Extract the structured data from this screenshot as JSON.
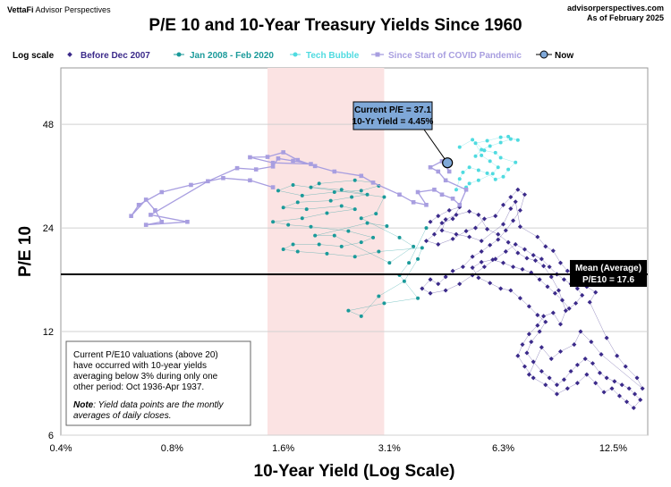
{
  "header": {
    "brand_bold": "VettaFi",
    "brand_rest": "Advisor Perspectives",
    "site": "advisorperspectives.com",
    "as_of": "As of February 2025",
    "title": "P/E 10 and 10-Year Treasury Yields Since 1960"
  },
  "colors": {
    "before": "#3b2a8a",
    "gfc": "#1a9a9a",
    "tech": "#4fdbe0",
    "covid": "#a89ee0",
    "now": "#7fa8d8",
    "band": "#fbe3e3"
  },
  "chart_data": {
    "type": "scatter",
    "title": "P/E 10 and 10-Year Treasury Yields Since 1960",
    "xlabel": "10-Year Yield (Log Scale)",
    "ylabel": "P/E 10",
    "x_scale": "log",
    "y_scale": "log",
    "xlim": [
      0.4,
      15.5
    ],
    "ylim": [
      6,
      70
    ],
    "x_ticks": [
      0.4,
      0.8,
      1.6,
      3.1,
      6.3,
      12.5
    ],
    "x_tick_labels": [
      "0.4%",
      "0.8%",
      "1.6%",
      "3.1%",
      "6.3%",
      "12.5%"
    ],
    "y_ticks": [
      6,
      12,
      24,
      48
    ],
    "y_tick_labels": [
      "6",
      "12",
      "24",
      "48"
    ],
    "log_scale_note": "Log scale",
    "grid": "horizontal",
    "legend_position": "top",
    "legend": [
      {
        "key": "before",
        "label": "Before Dec 2007"
      },
      {
        "key": "gfc",
        "label": "Jan 2008 - Feb 2020"
      },
      {
        "key": "tech",
        "label": "Tech Bubble"
      },
      {
        "key": "covid",
        "label": "Since Start of COVID Pandemic"
      },
      {
        "key": "now",
        "label": "Now"
      }
    ],
    "shaded_band": {
      "x_from": 1.45,
      "x_to": 3.0
    },
    "mean_line": {
      "y": 17.6,
      "label_line1": "Mean (Average)",
      "label_line2": "P/E10 = 17.6"
    },
    "now_point": {
      "x": 4.45,
      "y": 37.1,
      "label_line1": "Current P/E = 37.1",
      "label_line2": "10-Yr Yield = 4.45%"
    },
    "note": {
      "text": "Current P/E10 valuations (above 20) have occurred with 10-year yields averaging below 3% during only one other period: Oct 1936-Apr 1937.",
      "note_label": "Note",
      "note_text": ": Yield data points are the montly averages of daily closes."
    },
    "series": [
      {
        "key": "covid",
        "name": "Since Start of COVID Pandemic",
        "points": [
          [
            1.5,
            31.5
          ],
          [
            1.3,
            33
          ],
          [
            1.1,
            33.5
          ],
          [
            0.9,
            32
          ],
          [
            0.75,
            30.5
          ],
          [
            0.65,
            28
          ],
          [
            0.62,
            26
          ],
          [
            0.68,
            29
          ],
          [
            0.72,
            27
          ],
          [
            0.75,
            25
          ],
          [
            0.68,
            24.5
          ],
          [
            0.88,
            25
          ],
          [
            0.7,
            26.2
          ],
          [
            1.0,
            32.8
          ],
          [
            1.2,
            35.8
          ],
          [
            1.35,
            35.5
          ],
          [
            1.5,
            36.2
          ],
          [
            1.55,
            38.2
          ],
          [
            1.7,
            37.6
          ],
          [
            1.9,
            36.8
          ],
          [
            1.5,
            37.1
          ],
          [
            1.3,
            38.5
          ],
          [
            1.45,
            38.6
          ],
          [
            1.6,
            39.8
          ],
          [
            1.75,
            37.8
          ],
          [
            1.95,
            36.3
          ],
          [
            2.2,
            35
          ],
          [
            2.6,
            34
          ],
          [
            2.8,
            32.5
          ],
          [
            3.3,
            30
          ],
          [
            3.6,
            28.5
          ],
          [
            3.9,
            28
          ],
          [
            3.7,
            30.5
          ],
          [
            4.1,
            31
          ],
          [
            4.3,
            30
          ],
          [
            4.6,
            29.2
          ],
          [
            4.8,
            28
          ],
          [
            5.0,
            31
          ],
          [
            4.4,
            33
          ],
          [
            4.2,
            35
          ],
          [
            4.0,
            36
          ],
          [
            4.3,
            37.5
          ],
          [
            4.5,
            35
          ],
          [
            4.4,
            37
          ]
        ]
      },
      {
        "key": "gfc",
        "name": "Jan 2008 - Feb 2020",
        "points": [
          [
            3.9,
            24
          ],
          [
            3.5,
            19
          ],
          [
            3.3,
            17.5
          ],
          [
            3.7,
            15
          ],
          [
            3.0,
            14.5
          ],
          [
            2.4,
            13.8
          ],
          [
            2.6,
            13.3
          ],
          [
            2.9,
            15.2
          ],
          [
            3.4,
            16.8
          ],
          [
            3.7,
            19.5
          ],
          [
            3.8,
            21
          ],
          [
            2.9,
            20.5
          ],
          [
            2.5,
            19.8
          ],
          [
            2.1,
            20.2
          ],
          [
            1.75,
            20.5
          ],
          [
            1.6,
            20.8
          ],
          [
            1.7,
            21.5
          ],
          [
            2.0,
            21.5
          ],
          [
            2.3,
            21.2
          ],
          [
            2.6,
            21.8
          ],
          [
            2.8,
            22.5
          ],
          [
            2.4,
            23.5
          ],
          [
            1.9,
            24.2
          ],
          [
            1.65,
            24.5
          ],
          [
            1.5,
            25
          ],
          [
            1.8,
            25.6
          ],
          [
            2.1,
            26.5
          ],
          [
            2.5,
            27.2
          ],
          [
            2.3,
            27.8
          ],
          [
            1.85,
            27.2
          ],
          [
            1.6,
            27.5
          ],
          [
            1.75,
            28.5
          ],
          [
            2.15,
            28.8
          ],
          [
            2.45,
            29.5
          ],
          [
            2.7,
            30
          ],
          [
            2.3,
            31
          ],
          [
            1.9,
            31.5
          ],
          [
            2.0,
            32.3
          ],
          [
            2.5,
            33
          ],
          [
            2.8,
            32.5
          ],
          [
            2.9,
            31.8
          ],
          [
            2.6,
            30.8
          ],
          [
            2.2,
            30.5
          ],
          [
            1.8,
            29.8
          ],
          [
            1.55,
            30.8
          ],
          [
            1.7,
            32
          ],
          [
            3.0,
            29.5
          ],
          [
            2.85,
            26.4
          ],
          [
            2.6,
            25.6
          ],
          [
            3.3,
            22.5
          ],
          [
            3.6,
            21.2
          ],
          [
            3.1,
            19
          ],
          [
            2.2,
            22.8
          ],
          [
            1.95,
            22.8
          ],
          [
            2.7,
            24.8
          ],
          [
            3.05,
            24.3
          ]
        ]
      },
      {
        "key": "tech",
        "name": "Tech Bubble",
        "points": [
          [
            5.3,
            38.8
          ],
          [
            5.5,
            40.5
          ],
          [
            5.8,
            41.5
          ],
          [
            6.2,
            42.5
          ],
          [
            6.6,
            43.5
          ],
          [
            6.9,
            43.2
          ],
          [
            6.5,
            44.2
          ],
          [
            6.2,
            44
          ],
          [
            5.7,
            43
          ],
          [
            5.3,
            42.3
          ],
          [
            5.5,
            39
          ],
          [
            5.8,
            37.5
          ],
          [
            6.1,
            36
          ],
          [
            5.9,
            34.5
          ],
          [
            5.4,
            33
          ],
          [
            5.1,
            32.3
          ],
          [
            5.0,
            31.5
          ],
          [
            4.7,
            31
          ],
          [
            4.8,
            33.3
          ],
          [
            4.9,
            34.8
          ],
          [
            5.1,
            36
          ],
          [
            5.4,
            35.3
          ],
          [
            5.7,
            34.6
          ],
          [
            6.0,
            33.2
          ],
          [
            6.3,
            33.8
          ],
          [
            6.5,
            35.5
          ],
          [
            6.8,
            37.2
          ],
          [
            6.2,
            38.4
          ],
          [
            6.0,
            39.7
          ],
          [
            5.6,
            40.3
          ],
          [
            5.2,
            43.3
          ],
          [
            4.8,
            41.2
          ]
        ]
      },
      {
        "key": "before",
        "name": "Before Dec 2007",
        "points": [
          [
            4.0,
            25
          ],
          [
            4.2,
            26
          ],
          [
            4.5,
            27
          ],
          [
            4.8,
            27.6
          ],
          [
            4.6,
            25.5
          ],
          [
            4.3,
            24.8
          ],
          [
            4.1,
            23
          ],
          [
            3.9,
            22
          ],
          [
            4.2,
            21.5
          ],
          [
            4.6,
            22.3
          ],
          [
            5.0,
            23.5
          ],
          [
            5.3,
            24
          ],
          [
            5.6,
            25.5
          ],
          [
            6.0,
            26
          ],
          [
            6.3,
            28
          ],
          [
            6.6,
            29.5
          ],
          [
            6.9,
            31
          ],
          [
            7.2,
            30
          ],
          [
            7.0,
            27
          ],
          [
            6.7,
            25.2
          ],
          [
            6.4,
            23.6
          ],
          [
            6.1,
            22.2
          ],
          [
            5.8,
            21.4
          ],
          [
            5.5,
            20.5
          ],
          [
            5.2,
            19.8
          ],
          [
            4.9,
            18.5
          ],
          [
            4.6,
            18
          ],
          [
            4.4,
            17.3
          ],
          [
            4.2,
            16.5
          ],
          [
            4.0,
            17
          ],
          [
            3.8,
            16
          ],
          [
            4.0,
            15.5
          ],
          [
            4.4,
            15.8
          ],
          [
            4.8,
            16.5
          ],
          [
            5.2,
            17.5
          ],
          [
            5.6,
            18.5
          ],
          [
            6.0,
            19.5
          ],
          [
            6.4,
            20.5
          ],
          [
            6.8,
            21.5
          ],
          [
            7.2,
            20.8
          ],
          [
            7.6,
            20
          ],
          [
            8.0,
            19.5
          ],
          [
            8.4,
            18.5
          ],
          [
            8.8,
            17.6
          ],
          [
            9.2,
            17
          ],
          [
            9.6,
            16.5
          ],
          [
            10.0,
            16
          ],
          [
            10.3,
            15.3
          ],
          [
            9.9,
            14.5
          ],
          [
            9.5,
            14
          ],
          [
            9.1,
            14.8
          ],
          [
            8.7,
            15.5
          ],
          [
            8.3,
            16.2
          ],
          [
            7.9,
            17
          ],
          [
            7.5,
            17.8
          ],
          [
            7.1,
            18.2
          ],
          [
            6.7,
            18.5
          ],
          [
            6.3,
            19
          ],
          [
            5.9,
            19.4
          ],
          [
            5.5,
            19.1
          ],
          [
            5.2,
            18.4
          ],
          [
            5.4,
            17.2
          ],
          [
            5.8,
            16.6
          ],
          [
            6.2,
            16
          ],
          [
            6.6,
            15.8
          ],
          [
            7.0,
            15
          ],
          [
            7.4,
            14.2
          ],
          [
            7.8,
            13.4
          ],
          [
            8.2,
            12.8
          ],
          [
            7.9,
            12
          ],
          [
            7.5,
            11.2
          ],
          [
            7.3,
            10.4
          ],
          [
            7.6,
            9.8
          ],
          [
            8.0,
            9.2
          ],
          [
            8.4,
            8.8
          ],
          [
            8.8,
            8.4
          ],
          [
            9.2,
            8.7
          ],
          [
            9.6,
            9.2
          ],
          [
            10.0,
            9.6
          ],
          [
            10.5,
            10
          ],
          [
            11.0,
            9.7
          ],
          [
            11.5,
            9.1
          ],
          [
            12.0,
            8.8
          ],
          [
            12.6,
            8.6
          ],
          [
            13.2,
            8.4
          ],
          [
            13.8,
            8.2
          ],
          [
            14.3,
            7.9
          ],
          [
            14.8,
            7.6
          ],
          [
            14.2,
            7.2
          ],
          [
            13.6,
            7.5
          ],
          [
            13.0,
            7.8
          ],
          [
            12.4,
            8.2
          ],
          [
            11.8,
            8.0
          ],
          [
            11.2,
            8.5
          ],
          [
            10.6,
            9.0
          ],
          [
            10.0,
            8.5
          ],
          [
            9.4,
            8.2
          ],
          [
            8.8,
            7.9
          ],
          [
            8.2,
            8.4
          ],
          [
            7.6,
            8.8
          ],
          [
            7.2,
            9.5
          ],
          [
            6.9,
            10.2
          ],
          [
            7.1,
            11.0
          ],
          [
            7.4,
            11.8
          ],
          [
            7.8,
            12.5
          ],
          [
            8.1,
            13.3
          ],
          [
            8.6,
            13.6
          ],
          [
            9.0,
            12.6
          ],
          [
            9.3,
            13.8
          ],
          [
            8.9,
            15.8
          ],
          [
            8.5,
            17.3
          ],
          [
            8.1,
            18.6
          ],
          [
            7.7,
            19.3
          ],
          [
            7.3,
            19.6
          ],
          [
            6.9,
            20.3
          ],
          [
            6.5,
            21.8
          ],
          [
            6.1,
            23.0
          ],
          [
            5.7,
            23.8
          ],
          [
            5.4,
            26.2
          ],
          [
            5.1,
            26.8
          ],
          [
            4.7,
            26.2
          ],
          [
            4.4,
            25.4
          ],
          [
            4.3,
            23.6
          ],
          [
            4.7,
            23.0
          ],
          [
            5.1,
            22.6
          ],
          [
            5.5,
            22.0
          ],
          [
            6.3,
            24.6
          ],
          [
            6.6,
            27.3
          ],
          [
            6.8,
            28.6
          ],
          [
            7.0,
            24.2
          ],
          [
            7.8,
            22.6
          ],
          [
            8.2,
            21.2
          ],
          [
            8.6,
            20.6
          ],
          [
            9.0,
            19.0
          ],
          [
            9.4,
            18.0
          ],
          [
            10.2,
            17.5
          ],
          [
            10.6,
            16.2
          ],
          [
            11.2,
            15.6
          ],
          [
            10.8,
            14.6
          ],
          [
            12.0,
            11.5
          ],
          [
            12.8,
            10.2
          ],
          [
            13.5,
            9.5
          ],
          [
            14.5,
            8.8
          ],
          [
            15.0,
            8.2
          ],
          [
            11.6,
            10.3
          ],
          [
            10.9,
            11.2
          ],
          [
            10.2,
            12.0
          ],
          [
            9.8,
            11.0
          ],
          [
            9.0,
            10.5
          ],
          [
            8.5,
            10.0
          ],
          [
            8.0,
            10.8
          ],
          [
            7.4,
            9.0
          ]
        ]
      }
    ]
  }
}
